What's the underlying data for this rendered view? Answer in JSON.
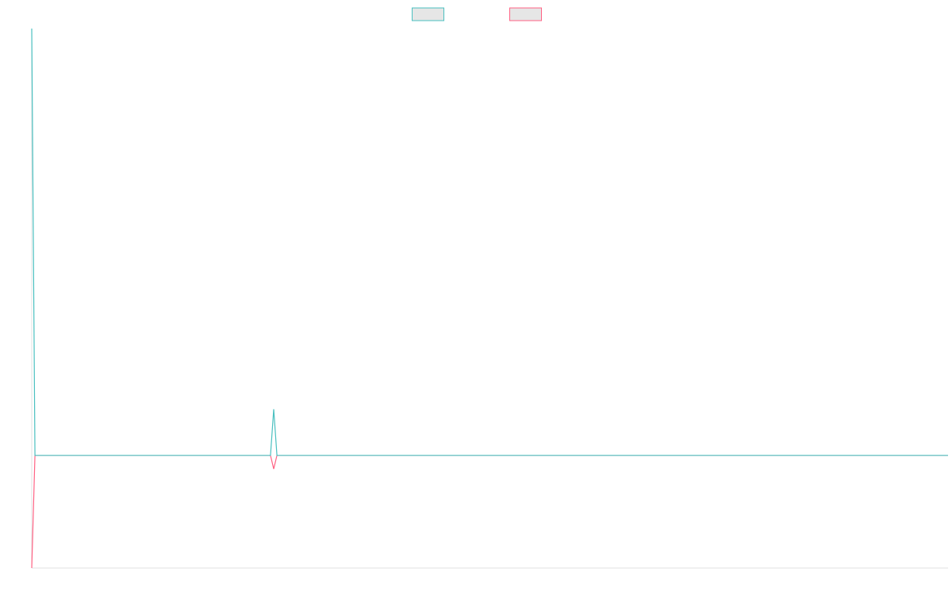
{
  "chart_data": {
    "type": "line",
    "x": [
      0,
      1,
      74,
      75,
      76,
      284
    ],
    "xlim": [
      0,
      284
    ],
    "ylim": [
      -1,
      3.79
    ],
    "legend": "top",
    "series": [
      {
        "color": "#4bc0c0",
        "values": [
          3.79,
          0,
          0,
          0.41,
          0,
          0
        ]
      },
      {
        "color": "#ff6384",
        "values": [
          -1,
          0,
          0,
          -0.12,
          0,
          0
        ]
      }
    ]
  }
}
